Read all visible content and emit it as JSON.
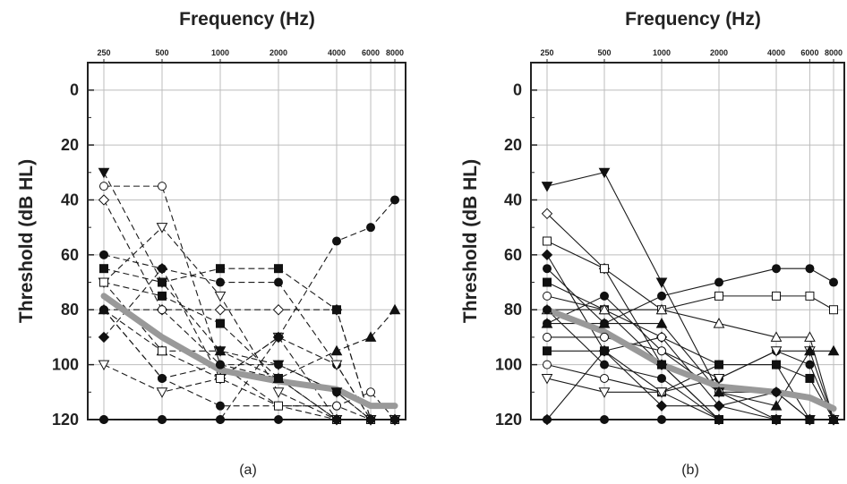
{
  "chart_data": [
    {
      "type": "line",
      "title": "Frequency (Hz)",
      "ylabel": "Threshold (dB HL)",
      "caption": "(a)",
      "x": [
        250,
        500,
        1000,
        2000,
        4000,
        6000,
        8000
      ],
      "x_tick_labels": [
        "250",
        "500",
        "1000",
        "2000",
        "4000",
        "6000",
        "8000"
      ],
      "x_scale": "log",
      "y_tick_labels": [
        "0",
        "20",
        "40",
        "60",
        "80",
        "100",
        "120"
      ],
      "ylim": [
        -10,
        120
      ],
      "y_inverted": true,
      "grid": true,
      "line_style": "dashed",
      "series": [
        {
          "marker": "triangle-down-filled",
          "values": [
            30,
            70,
            95,
            100,
            110,
            120,
            120
          ]
        },
        {
          "marker": "circle-open",
          "values": [
            35,
            35,
            100,
            105,
            120,
            120,
            120
          ]
        },
        {
          "marker": "diamond-open",
          "values": [
            40,
            80,
            80,
            80,
            80,
            120,
            120
          ]
        },
        {
          "marker": "triangle-down-open",
          "values": [
            70,
            50,
            75,
            110,
            120,
            120,
            120
          ]
        },
        {
          "marker": "circle-filled",
          "values": [
            60,
            65,
            70,
            70,
            100,
            120,
            120
          ]
        },
        {
          "marker": "square-filled",
          "values": [
            65,
            70,
            65,
            65,
            80,
            120,
            120
          ]
        },
        {
          "marker": "square-filled",
          "values": [
            70,
            75,
            85,
            105,
            120,
            120,
            120
          ]
        },
        {
          "marker": "circle-filled",
          "values": [
            80,
            105,
            115,
            115,
            115,
            120,
            120
          ]
        },
        {
          "marker": "circle-open",
          "values": [
            80,
            80,
            100,
            115,
            115,
            110,
            120
          ]
        },
        {
          "marker": "diamond-filled",
          "values": [
            90,
            65,
            105,
            90,
            120,
            120,
            120
          ]
        },
        {
          "marker": "triangle-down-open",
          "values": [
            100,
            110,
            105,
            90,
            100,
            120,
            120
          ]
        },
        {
          "marker": "circle-filled",
          "values": [
            80,
            105,
            100,
            100,
            110,
            120,
            120
          ]
        },
        {
          "marker": "triangle-up-filled",
          "values": [
            80,
            95,
            95,
            105,
            95,
            90,
            80
          ]
        },
        {
          "marker": "circle-filled",
          "values": [
            120,
            120,
            120,
            90,
            55,
            50,
            40
          ]
        },
        {
          "marker": "square-open",
          "values": [
            70,
            95,
            105,
            115,
            120,
            120,
            120
          ]
        },
        {
          "marker": "circle-filled",
          "values": [
            120,
            120,
            120,
            120,
            120,
            120,
            120
          ]
        }
      ],
      "mean": {
        "color": "#999999",
        "values": [
          75,
          90,
          102,
          106,
          109,
          115,
          115
        ]
      }
    },
    {
      "type": "line",
      "title": "Frequency (Hz)",
      "ylabel": "Threshold (dB HL)",
      "caption": "(b)",
      "x": [
        250,
        500,
        1000,
        2000,
        4000,
        6000,
        8000
      ],
      "x_tick_labels": [
        "250",
        "500",
        "1000",
        "2000",
        "4000",
        "6000",
        "8000"
      ],
      "x_scale": "log",
      "y_tick_labels": [
        "0",
        "20",
        "40",
        "60",
        "80",
        "100",
        "120"
      ],
      "ylim": [
        -10,
        120
      ],
      "y_inverted": true,
      "grid": true,
      "line_style": "solid",
      "series": [
        {
          "marker": "triangle-down-filled",
          "values": [
            35,
            30,
            70,
            110,
            120,
            120,
            120
          ]
        },
        {
          "marker": "diamond-open",
          "values": [
            45,
            65,
            100,
            120,
            120,
            120,
            120
          ]
        },
        {
          "marker": "square-open",
          "values": [
            55,
            65,
            80,
            75,
            75,
            75,
            80
          ]
        },
        {
          "marker": "diamond-filled",
          "values": [
            60,
            95,
            90,
            115,
            120,
            120,
            120
          ]
        },
        {
          "marker": "circle-filled",
          "values": [
            65,
            85,
            75,
            70,
            65,
            65,
            70
          ]
        },
        {
          "marker": "square-filled",
          "values": [
            70,
            80,
            100,
            120,
            120,
            120,
            120
          ]
        },
        {
          "marker": "circle-open",
          "values": [
            75,
            80,
            90,
            100,
            100,
            120,
            120
          ]
        },
        {
          "marker": "triangle-up-open",
          "values": [
            80,
            80,
            80,
            85,
            90,
            90,
            120
          ]
        },
        {
          "marker": "circle-filled",
          "values": [
            85,
            75,
            95,
            105,
            95,
            100,
            120
          ]
        },
        {
          "marker": "circle-open",
          "values": [
            90,
            90,
            95,
            110,
            110,
            120,
            120
          ]
        },
        {
          "marker": "circle-filled",
          "values": [
            80,
            100,
            105,
            120,
            120,
            120,
            120
          ]
        },
        {
          "marker": "square-filled",
          "values": [
            95,
            95,
            110,
            100,
            100,
            105,
            120
          ]
        },
        {
          "marker": "circle-open",
          "values": [
            100,
            105,
            110,
            120,
            120,
            120,
            120
          ]
        },
        {
          "marker": "triangle-down-open",
          "values": [
            105,
            110,
            110,
            105,
            95,
            95,
            120
          ]
        },
        {
          "marker": "triangle-up-filled",
          "values": [
            85,
            85,
            85,
            110,
            115,
            95,
            95
          ]
        },
        {
          "marker": "diamond-filled",
          "values": [
            120,
            95,
            115,
            115,
            110,
            120,
            120
          ]
        },
        {
          "marker": "circle-filled",
          "values": [
            120,
            120,
            120,
            120,
            120,
            120,
            120
          ]
        }
      ],
      "mean": {
        "color": "#999999",
        "values": [
          80,
          88,
          100,
          108,
          110,
          112,
          116
        ]
      }
    }
  ]
}
